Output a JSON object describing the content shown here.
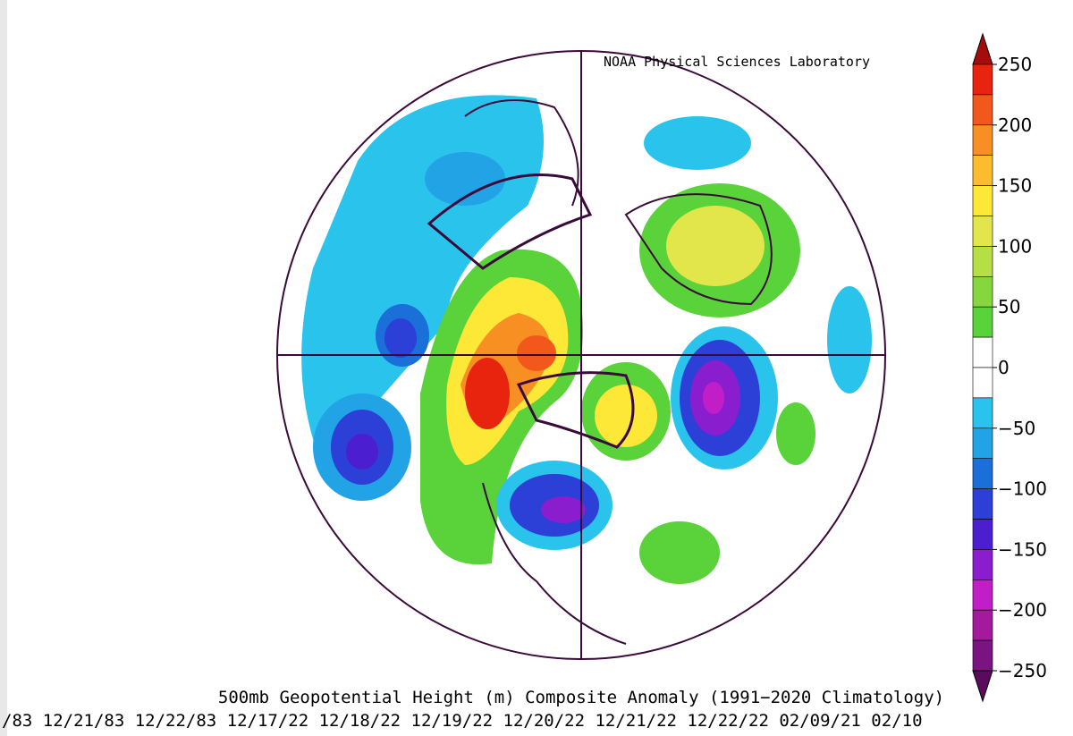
{
  "header": {
    "lab": "NOAA Physical Sciences Laboratory"
  },
  "caption": {
    "title": "500mb Geopotential Height (m) Composite Anomaly (1991−2020 Climatology)",
    "dates": "/83 12/21/83 12/22/83 12/17/22 12/18/22 12/19/22 12/20/22 12/21/22 12/22/22 02/09/21 02/10"
  },
  "colorbar": {
    "ticks": [
      250,
      200,
      150,
      100,
      50,
      0,
      {
        "value": -50,
        "label": "−50"
      },
      {
        "value": -100,
        "label": "−100"
      },
      {
        "value": -150,
        "label": "−150"
      },
      {
        "value": -200,
        "label": "−200"
      },
      {
        "value": -250,
        "label": "−250"
      }
    ],
    "colors": [
      "#a50d0d",
      "#e8230e",
      "#f2571b",
      "#f78f23",
      "#fbbc2d",
      "#fde838",
      "#e3e64a",
      "#b6df46",
      "#86d63e",
      "#5ad23a",
      "#ffffff",
      "#ffffff",
      "#29c3ec",
      "#21a3e6",
      "#1a6fd9",
      "#2c3fd6",
      "#4b1fd0",
      "#8a1ecf",
      "#c21ec8",
      "#a31a9c",
      "#7a1480",
      "#5a0b5e"
    ]
  }
}
